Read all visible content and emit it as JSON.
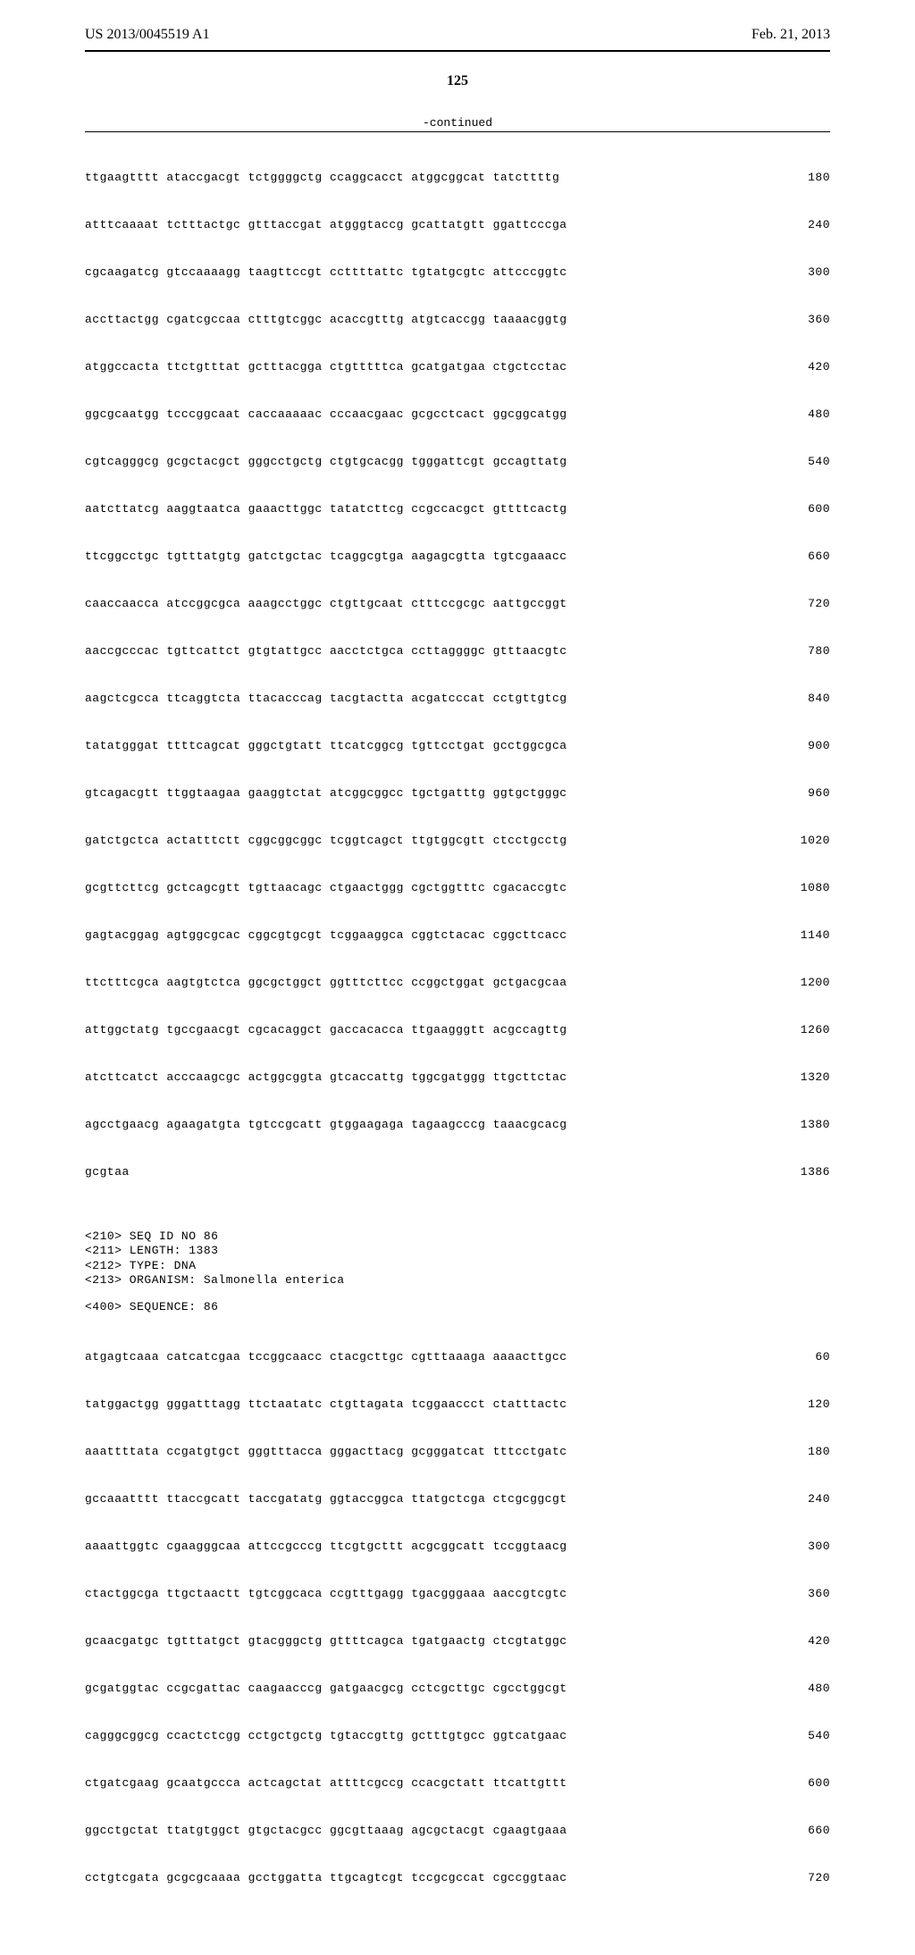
{
  "header": {
    "publication_number": "US 2013/0045519 A1",
    "date": "Feb. 21, 2013"
  },
  "page_number": "125",
  "continued_label": "-continued",
  "sequence1": {
    "rows": [
      {
        "text": "ttgaagtttt ataccgacgt tctggggctg ccaggcacct atggcggcat tatcttttg",
        "num": "180"
      },
      {
        "text": "atttcaaaat tctttactgc gtttaccgat atgggtaccg gcattatgtt ggattcccga",
        "num": "240"
      },
      {
        "text": "cgcaagatcg gtccaaaagg taagttccgt ccttttattc tgtatgcgtc attcccggtc",
        "num": "300"
      },
      {
        "text": "accttactgg cgatcgccaa ctttgtcggc acaccgtttg atgtcaccgg taaaacggtg",
        "num": "360"
      },
      {
        "text": "atggccacta ttctgtttat gctttacgga ctgtttttca gcatgatgaa ctgctcctac",
        "num": "420"
      },
      {
        "text": "ggcgcaatgg tcccggcaat caccaaaaac cccaacgaac gcgcctcact ggcggcatgg",
        "num": "480"
      },
      {
        "text": "cgtcagggcg gcgctacgct gggcctgctg ctgtgcacgg tgggattcgt gccagttatg",
        "num": "540"
      },
      {
        "text": "aatcttatcg aaggtaatca gaaacttggc tatatcttcg ccgccacgct gttttcactg",
        "num": "600"
      },
      {
        "text": "ttcggcctgc tgtttatgtg gatctgctac tcaggcgtga aagagcgtta tgtcgaaacc",
        "num": "660"
      },
      {
        "text": "caaccaacca atccggcgca aaagcctggc ctgttgcaat ctttccgcgc aattgccggt",
        "num": "720"
      },
      {
        "text": "aaccgcccac tgttcattct gtgtattgcc aacctctgca ccttaggggc gtttaacgtc",
        "num": "780"
      },
      {
        "text": "aagctcgcca ttcaggtcta ttacacccag tacgtactta acgatcccat cctgttgtcg",
        "num": "840"
      },
      {
        "text": "tatatgggat ttttcagcat gggctgtatt ttcatcggcg tgttcctgat gcctggcgca",
        "num": "900"
      },
      {
        "text": "gtcagacgtt ttggtaagaa gaaggtctat atcggcggcc tgctgatttg ggtgctgggc",
        "num": "960"
      },
      {
        "text": "gatctgctca actatttctt cggcggcggc tcggtcagct ttgtggcgtt ctcctgcctg",
        "num": "1020"
      },
      {
        "text": "gcgttcttcg gctcagcgtt tgttaacagc ctgaactggg cgctggtttc cgacaccgtc",
        "num": "1080"
      },
      {
        "text": "gagtacggag agtggcgcac cggcgtgcgt tcggaaggca cggtctacac cggcttcacc",
        "num": "1140"
      },
      {
        "text": "ttctttcgca aagtgtctca ggcgctggct ggtttcttcc ccggctggat gctgacgcaa",
        "num": "1200"
      },
      {
        "text": "attggctatg tgccgaacgt cgcacaggct gaccacacca ttgaagggtt acgccagttg",
        "num": "1260"
      },
      {
        "text": "atcttcatct acccaagcgc actggcggta gtcaccattg tggcgatggg ttgcttctac",
        "num": "1320"
      },
      {
        "text": "agcctgaacg agaagatgta tgtccgcatt gtggaagaga tagaagcccg taaacgcacg",
        "num": "1380"
      },
      {
        "text": "gcgtaa",
        "num": "1386"
      }
    ]
  },
  "meta": {
    "lines": [
      "<210> SEQ ID NO 86",
      "<211> LENGTH: 1383",
      "<212> TYPE: DNA",
      "<213> ORGANISM: Salmonella enterica"
    ]
  },
  "sequence_label": "<400> SEQUENCE: 86",
  "sequence2": {
    "rows": [
      {
        "text": "atgagtcaaa catcatcgaa tccggcaacc ctacgcttgc cgtttaaaga aaaacttgcc",
        "num": "60"
      },
      {
        "text": "tatggactgg gggatttagg ttctaatatc ctgttagata tcggaaccct ctatttactc",
        "num": "120"
      },
      {
        "text": "aaattttata ccgatgtgct gggtttacca gggacttacg gcgggatcat tttcctgatc",
        "num": "180"
      },
      {
        "text": "gccaaatttt ttaccgcatt taccgatatg ggtaccggca ttatgctcga ctcgcggcgt",
        "num": "240"
      },
      {
        "text": "aaaattggtc cgaagggcaa attccgcccg ttcgtgcttt acgcggcatt tccggtaacg",
        "num": "300"
      },
      {
        "text": "ctactggcga ttgctaactt tgtcggcaca ccgtttgagg tgacgggaaa aaccgtcgtc",
        "num": "360"
      },
      {
        "text": "gcaacgatgc tgtttatgct gtacgggctg gttttcagca tgatgaactg ctcgtatggc",
        "num": "420"
      },
      {
        "text": "gcgatggtac ccgcgattac caagaacccg gatgaacgcg cctcgcttgc cgcctggcgt",
        "num": "480"
      },
      {
        "text": "cagggcggcg ccactctcgg cctgctgctg tgtaccgttg gctttgtgcc ggtcatgaac",
        "num": "540"
      },
      {
        "text": "ctgatcgaag gcaatgccca actcagctat attttcgccg ccacgctatt ttcattgttt",
        "num": "600"
      },
      {
        "text": "ggcctgctat ttatgtggct gtgctacgcc ggcgttaaag agcgctacgt cgaagtgaaa",
        "num": "660"
      },
      {
        "text": "cctgtcgata gcgcgcaaaa gcctggatta ttgcagtcgt tccgcgccat cgccggtaac",
        "num": "720"
      }
    ]
  }
}
